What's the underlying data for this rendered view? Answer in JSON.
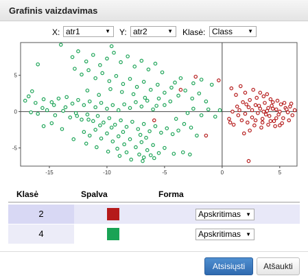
{
  "window": {
    "title": "Grafinis vaizdavimas"
  },
  "controls": {
    "x_label": "X:",
    "x_value": "atr1",
    "y_label": "Y:",
    "y_value": "atr2",
    "class_label": "Klasė:",
    "class_value": "Class"
  },
  "chart_data": {
    "type": "scatter",
    "xlim": [
      -17.5,
      6.5
    ],
    "ylim": [
      -7.5,
      9.5
    ],
    "x_ticks": [
      -15,
      -10,
      -5,
      0,
      5
    ],
    "y_ticks": [
      -5,
      0,
      5
    ],
    "x_tick_labels": [
      "-15",
      "-10",
      "-5",
      "0",
      "5"
    ],
    "y_tick_labels": [
      "-5",
      "0",
      "5"
    ],
    "grid": false,
    "series": [
      {
        "color": "#1aa355",
        "marker": "circle",
        "points": [
          [
            -16.5,
            2.8
          ],
          [
            -16.8,
            2.1
          ],
          [
            -17.1,
            1.5
          ],
          [
            -16.2,
            1.2
          ],
          [
            -15.5,
            1.7
          ],
          [
            -14.8,
            1.3
          ],
          [
            -14.2,
            1.8
          ],
          [
            -13.5,
            2.0
          ],
          [
            -13.0,
            1.1
          ],
          [
            -12.5,
            1.6
          ],
          [
            -12.0,
            0.9
          ],
          [
            -11.5,
            1.4
          ],
          [
            -11.0,
            0.6
          ],
          [
            -10.5,
            1.2
          ],
          [
            -10.0,
            0.4
          ],
          [
            -9.5,
            0.9
          ],
          [
            -9.0,
            0.2
          ],
          [
            -8.5,
            1.0
          ],
          [
            -8.0,
            0.5
          ],
          [
            -7.5,
            1.3
          ],
          [
            -7.0,
            0.7
          ],
          [
            -6.5,
            1.5
          ],
          [
            -6.0,
            0.3
          ],
          [
            -5.5,
            1.8
          ],
          [
            -5.0,
            0.9
          ],
          [
            -4.5,
            1.4
          ],
          [
            -16.0,
            -0.3
          ],
          [
            -15.2,
            0.2
          ],
          [
            -14.5,
            -0.5
          ],
          [
            -13.8,
            0.1
          ],
          [
            -13.2,
            -0.8
          ],
          [
            -12.7,
            -0.2
          ],
          [
            -12.2,
            -1.1
          ],
          [
            -11.7,
            -0.4
          ],
          [
            -11.2,
            -1.3
          ],
          [
            -10.8,
            -0.6
          ],
          [
            -10.3,
            -1.5
          ],
          [
            -9.8,
            -0.9
          ],
          [
            -9.3,
            -1.8
          ],
          [
            -8.8,
            -1.2
          ],
          [
            -8.3,
            -2.1
          ],
          [
            -7.8,
            -1.4
          ],
          [
            -7.3,
            -2.4
          ],
          [
            -6.8,
            -1.7
          ],
          [
            -6.3,
            -2.7
          ],
          [
            -5.8,
            -2.0
          ],
          [
            -5.3,
            -2.9
          ],
          [
            -4.8,
            -2.3
          ],
          [
            -4.3,
            -3.1
          ],
          [
            -3.8,
            -2.6
          ],
          [
            -12.0,
            -2.8
          ],
          [
            -11.5,
            -3.3
          ],
          [
            -11.0,
            -2.5
          ],
          [
            -10.5,
            -3.7
          ],
          [
            -10.0,
            -3.0
          ],
          [
            -9.5,
            -4.1
          ],
          [
            -9.0,
            -3.4
          ],
          [
            -8.5,
            -4.5
          ],
          [
            -8.0,
            -3.8
          ],
          [
            -7.5,
            -4.9
          ],
          [
            -7.0,
            -4.2
          ],
          [
            -6.5,
            -5.3
          ],
          [
            -6.0,
            -4.6
          ],
          [
            -5.5,
            -5.7
          ],
          [
            -5.0,
            -5.0
          ],
          [
            -7.2,
            -5.9
          ],
          [
            -6.8,
            -6.3
          ],
          [
            -6.2,
            -6.0
          ],
          [
            -8.3,
            -5.6
          ],
          [
            -9.1,
            -5.1
          ],
          [
            -13.0,
            7.5
          ],
          [
            -12.5,
            8.3
          ],
          [
            -11.8,
            6.9
          ],
          [
            -11.2,
            7.8
          ],
          [
            -10.6,
            6.4
          ],
          [
            -10.0,
            7.3
          ],
          [
            -9.4,
            8.1
          ],
          [
            -8.8,
            6.8
          ],
          [
            -8.2,
            7.6
          ],
          [
            -7.6,
            6.2
          ],
          [
            -7.0,
            7.0
          ],
          [
            -6.4,
            5.8
          ],
          [
            -5.8,
            6.6
          ],
          [
            -5.2,
            5.4
          ],
          [
            -12.8,
            5.9
          ],
          [
            -12.2,
            5.1
          ],
          [
            -11.6,
            5.7
          ],
          [
            -11.0,
            4.6
          ],
          [
            -10.4,
            5.3
          ],
          [
            -9.8,
            4.2
          ],
          [
            -9.2,
            4.9
          ],
          [
            -8.6,
            3.8
          ],
          [
            -8.0,
            4.5
          ],
          [
            -7.4,
            3.4
          ],
          [
            -6.8,
            4.1
          ],
          [
            -6.2,
            3.0
          ],
          [
            -5.6,
            3.7
          ],
          [
            -5.0,
            2.6
          ],
          [
            -4.4,
            3.3
          ],
          [
            -3.8,
            2.2
          ],
          [
            -3.2,
            2.9
          ],
          [
            -2.6,
            1.8
          ],
          [
            -2.0,
            2.5
          ],
          [
            -1.4,
            1.4
          ],
          [
            -9.6,
            9.0
          ],
          [
            -14.0,
            9.2
          ],
          [
            -16.0,
            6.5
          ],
          [
            -3.0,
            -0.2
          ],
          [
            -2.5,
            0.4
          ],
          [
            -1.8,
            -0.5
          ],
          [
            -1.2,
            0.3
          ],
          [
            -0.6,
            -0.7
          ],
          [
            -0.2,
            0.2
          ],
          [
            -15.5,
            -2.0
          ],
          [
            -14.8,
            -1.6
          ],
          [
            -13.9,
            -2.4
          ],
          [
            -12.9,
            -3.8
          ],
          [
            -11.8,
            -4.4
          ],
          [
            -10.9,
            -4.9
          ],
          [
            -9.9,
            -5.5
          ],
          [
            -8.9,
            -6.1
          ],
          [
            -7.9,
            -6.6
          ],
          [
            -6.9,
            -6.8
          ],
          [
            -5.9,
            -6.4
          ],
          [
            -4.2,
            -5.8
          ],
          [
            -3.4,
            -5.6
          ],
          [
            -2.8,
            -5.9
          ],
          [
            -4.0,
            -1.0
          ],
          [
            -3.3,
            -1.7
          ],
          [
            -2.7,
            -2.2
          ],
          [
            -2.2,
            -3.3
          ],
          [
            -5.7,
            0.8
          ],
          [
            -6.7,
            1.9
          ],
          [
            -7.7,
            2.4
          ],
          [
            -8.7,
            2.7
          ],
          [
            -9.7,
            3.1
          ],
          [
            -10.7,
            2.3
          ],
          [
            -11.7,
            2.9
          ],
          [
            -4.1,
            4.0
          ],
          [
            -3.6,
            4.6
          ],
          [
            -2.5,
            3.9
          ],
          [
            -1.8,
            4.4
          ],
          [
            -0.9,
            3.7
          ],
          [
            -7.1,
            -3.2
          ],
          [
            -6.6,
            -3.6
          ],
          [
            -8.6,
            -2.8
          ],
          [
            -9.6,
            -2.2
          ],
          [
            -10.6,
            -1.9
          ],
          [
            -11.6,
            -1.1
          ],
          [
            -12.6,
            -0.6
          ],
          [
            -13.6,
            0.6
          ],
          [
            -14.6,
            0.9
          ],
          [
            -15.6,
            0.5
          ],
          [
            -16.6,
            -0.1
          ]
        ]
      },
      {
        "color": "#b51a1a",
        "marker": "circle",
        "points": [
          [
            1.5,
            0.2
          ],
          [
            2.0,
            -0.3
          ],
          [
            2.3,
            0.6
          ],
          [
            2.6,
            -0.8
          ],
          [
            2.9,
            0.9
          ],
          [
            3.1,
            -0.2
          ],
          [
            3.3,
            0.4
          ],
          [
            3.5,
            -1.0
          ],
          [
            3.7,
            1.2
          ],
          [
            3.9,
            0.1
          ],
          [
            4.1,
            -0.6
          ],
          [
            4.3,
            0.8
          ],
          [
            4.5,
            -1.3
          ],
          [
            4.7,
            0.3
          ],
          [
            4.9,
            -0.4
          ],
          [
            5.1,
            1.0
          ],
          [
            5.3,
            -0.9
          ],
          [
            5.5,
            0.5
          ],
          [
            5.7,
            -0.1
          ],
          [
            5.9,
            0.7
          ],
          [
            6.1,
            -0.5
          ],
          [
            6.3,
            0.2
          ],
          [
            1.8,
            1.3
          ],
          [
            2.4,
            1.6
          ],
          [
            3.0,
            1.9
          ],
          [
            3.6,
            2.1
          ],
          [
            4.2,
            1.7
          ],
          [
            4.8,
            1.5
          ],
          [
            5.4,
            1.2
          ],
          [
            1.7,
            -1.2
          ],
          [
            2.2,
            -1.5
          ],
          [
            2.8,
            -1.9
          ],
          [
            3.4,
            -2.2
          ],
          [
            4.0,
            -1.8
          ],
          [
            4.6,
            -2.0
          ],
          [
            5.2,
            -1.6
          ],
          [
            5.8,
            -1.2
          ],
          [
            0.6,
            -1.0
          ],
          [
            1.0,
            -1.8
          ],
          [
            1.2,
            2.3
          ],
          [
            2.0,
            2.6
          ],
          [
            2.7,
            3.0
          ],
          [
            3.3,
            2.6
          ],
          [
            0.8,
            3.2
          ],
          [
            1.6,
            3.5
          ],
          [
            -0.3,
            4.3
          ],
          [
            -2.3,
            4.8
          ],
          [
            -3.6,
            3.0
          ],
          [
            -5.9,
            -1.2
          ],
          [
            -1.4,
            -3.3
          ],
          [
            0.7,
            -1.5
          ],
          [
            2.3,
            -6.8
          ],
          [
            4.2,
            -1.3
          ],
          [
            5.0,
            0.0
          ],
          [
            4.4,
            0.4
          ],
          [
            3.8,
            -0.4
          ],
          [
            3.2,
            0.8
          ],
          [
            2.6,
            0.2
          ],
          [
            2.1,
            1.0
          ],
          [
            1.3,
            0.7
          ],
          [
            0.9,
            0.0
          ],
          [
            1.4,
            -0.5
          ],
          [
            3.6,
            0.0
          ],
          [
            4.0,
            0.5
          ],
          [
            4.7,
            -0.9
          ],
          [
            5.6,
            0.3
          ],
          [
            6.0,
            1.1
          ],
          [
            5.0,
            -1.9
          ],
          [
            3.5,
            -1.5
          ],
          [
            2.9,
            -1.2
          ],
          [
            4.4,
            1.3
          ],
          [
            3.9,
            2.4
          ],
          [
            2.4,
            -2.6
          ],
          [
            1.9,
            -3.0
          ]
        ]
      }
    ]
  },
  "table": {
    "headers": {
      "class": "Klasė",
      "color": "Spalva",
      "shape": "Forma"
    },
    "rows": [
      {
        "class": "2",
        "color": "#b51a1a",
        "shape": "Apskritimas"
      },
      {
        "class": "4",
        "color": "#1aa355",
        "shape": "Apskritimas"
      }
    ]
  },
  "buttons": {
    "download": "Atsisiųsti",
    "cancel": "Atšaukti"
  }
}
